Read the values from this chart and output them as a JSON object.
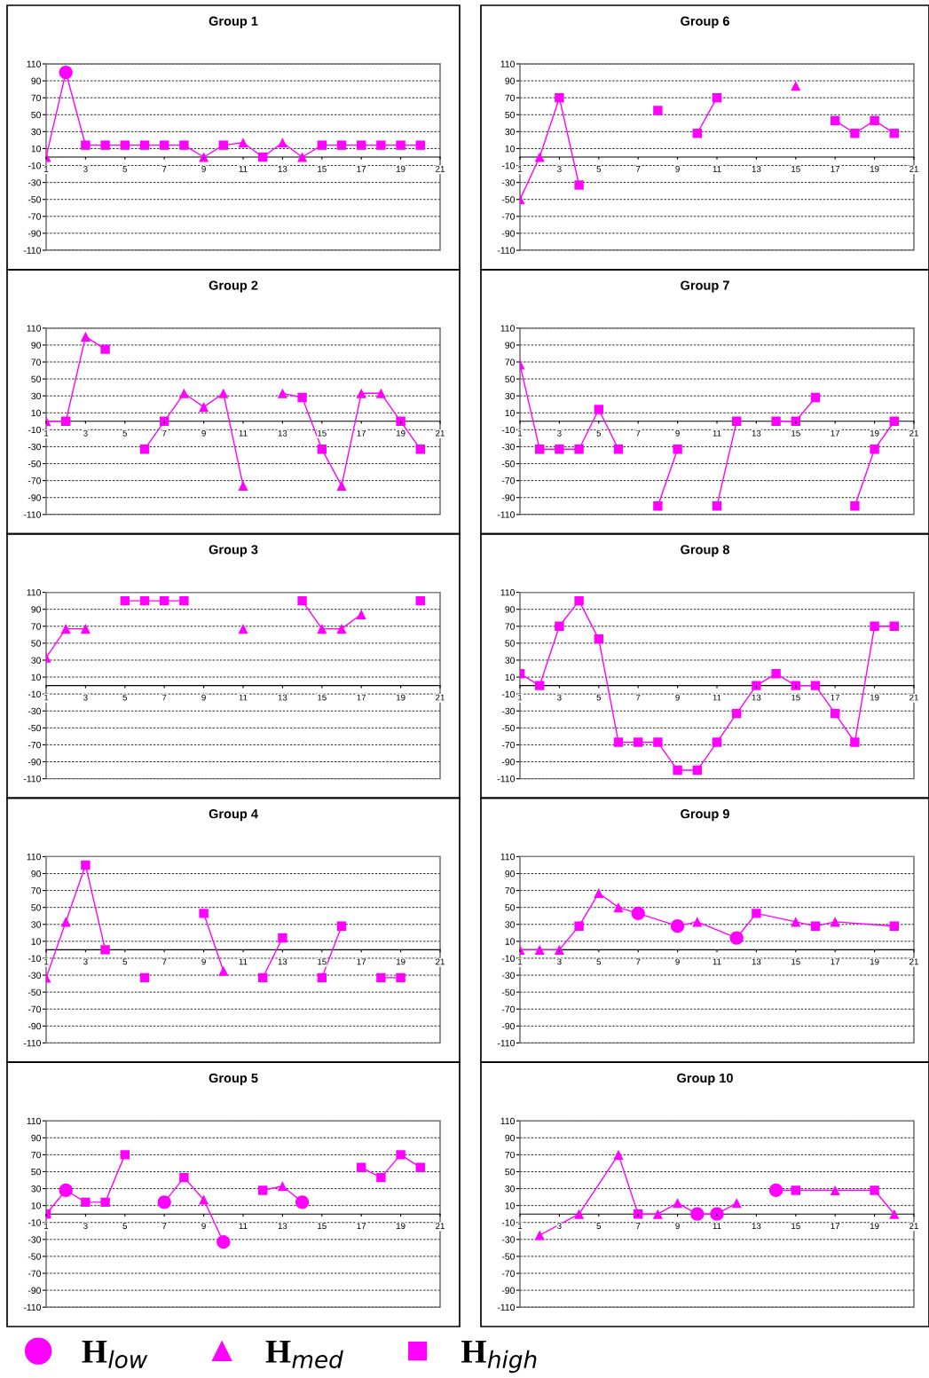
{
  "chart_data": [
    {
      "type": "line",
      "title": "Group 1",
      "x": [
        1,
        2,
        3,
        4,
        5,
        6,
        7,
        8,
        9,
        10,
        11,
        12,
        13,
        14,
        15,
        16,
        17,
        18,
        19,
        20
      ],
      "xlim": [
        1,
        21
      ],
      "xticks": [
        1,
        3,
        5,
        7,
        9,
        11,
        13,
        15,
        17,
        19,
        21
      ],
      "ylim": [
        -110,
        110
      ],
      "yticks": [
        -110,
        -90,
        -70,
        -50,
        -30,
        -10,
        10,
        30,
        50,
        70,
        90,
        110
      ],
      "grid": "y",
      "legend": "bottom",
      "series": [
        {
          "type": "line",
          "color": "#ff00ff",
          "marker": "none",
          "values": [
            0,
            100,
            14,
            14,
            14,
            14,
            14,
            14,
            0,
            14,
            17,
            0,
            17,
            0,
            14,
            14,
            14,
            14,
            14,
            14
          ]
        },
        {
          "type": "scatter",
          "name": "H$_{low}$",
          "marker": "circle",
          "color": "#ff00ff",
          "values": [
            null,
            100,
            null,
            null,
            null,
            null,
            null,
            null,
            null,
            null,
            null,
            null,
            null,
            null,
            null,
            null,
            null,
            null,
            null,
            null
          ]
        },
        {
          "type": "scatter",
          "name": "H$_{med}$",
          "marker": "triangle",
          "color": "#ff00ff",
          "values": [
            0,
            null,
            null,
            null,
            null,
            null,
            null,
            null,
            0,
            null,
            17,
            null,
            17,
            0,
            null,
            null,
            null,
            null,
            null,
            null
          ]
        },
        {
          "type": "scatter",
          "name": "H$_{high}$",
          "marker": "square",
          "color": "#ff00ff",
          "values": [
            null,
            null,
            14,
            14,
            14,
            14,
            14,
            14,
            null,
            14,
            null,
            0,
            null,
            null,
            14,
            14,
            14,
            14,
            14,
            14
          ]
        }
      ]
    },
    {
      "type": "line",
      "title": "Group 6",
      "x": [
        1,
        2,
        3,
        4,
        5,
        6,
        7,
        8,
        9,
        10,
        11,
        12,
        13,
        14,
        15,
        16,
        17,
        18,
        19,
        20
      ],
      "xlim": [
        1,
        21
      ],
      "xticks": [
        1,
        3,
        5,
        7,
        9,
        11,
        13,
        15,
        17,
        19,
        21
      ],
      "ylim": [
        -110,
        110
      ],
      "yticks": [
        -110,
        -90,
        -70,
        -50,
        -30,
        -10,
        10,
        30,
        50,
        70,
        90,
        110
      ],
      "grid": "y",
      "series": [
        {
          "type": "line",
          "color": "#ff00ff",
          "marker": "none",
          "values": [
            -50,
            0,
            70,
            -33,
            null,
            null,
            null,
            null,
            null,
            28,
            70,
            null,
            null,
            null,
            null,
            null,
            43,
            28,
            43,
            28
          ]
        },
        {
          "type": "scatter",
          "marker": "triangle",
          "color": "#ff00ff",
          "values": [
            -50,
            0,
            null,
            null,
            null,
            null,
            null,
            null,
            null,
            null,
            null,
            null,
            null,
            null,
            84,
            null,
            null,
            null,
            null,
            null
          ]
        },
        {
          "type": "scatter",
          "marker": "square",
          "color": "#ff00ff",
          "values": [
            null,
            null,
            70,
            -33,
            null,
            null,
            null,
            55,
            null,
            28,
            70,
            null,
            null,
            null,
            null,
            null,
            43,
            28,
            43,
            28
          ]
        }
      ]
    },
    {
      "type": "line",
      "title": "Group 2",
      "x": [
        1,
        2,
        3,
        4,
        5,
        6,
        7,
        8,
        9,
        10,
        11,
        12,
        13,
        14,
        15,
        16,
        17,
        18,
        19,
        20
      ],
      "xlim": [
        1,
        21
      ],
      "xticks": [
        1,
        3,
        5,
        7,
        9,
        11,
        13,
        15,
        17,
        19,
        21
      ],
      "ylim": [
        -110,
        110
      ],
      "yticks": [
        -110,
        -90,
        -70,
        -50,
        -30,
        -10,
        10,
        30,
        50,
        70,
        90,
        110
      ],
      "grid": "y",
      "series": [
        {
          "type": "line",
          "color": "#ff00ff",
          "marker": "none",
          "values": [
            0,
            0,
            100,
            85,
            null,
            -33,
            0,
            33,
            17,
            33,
            -76,
            null,
            33,
            28,
            -33,
            -76,
            33,
            33,
            0,
            -33
          ]
        },
        {
          "type": "scatter",
          "marker": "triangle",
          "color": "#ff00ff",
          "values": [
            0,
            null,
            100,
            null,
            null,
            null,
            null,
            33,
            17,
            33,
            -76,
            null,
            33,
            null,
            null,
            -76,
            33,
            33,
            null,
            null
          ]
        },
        {
          "type": "scatter",
          "marker": "square",
          "color": "#ff00ff",
          "values": [
            null,
            0,
            null,
            85,
            null,
            -33,
            0,
            null,
            null,
            null,
            null,
            null,
            null,
            28,
            -33,
            null,
            null,
            null,
            0,
            -33
          ]
        }
      ]
    },
    {
      "type": "line",
      "title": "Group 7",
      "x": [
        1,
        2,
        3,
        4,
        5,
        6,
        7,
        8,
        9,
        10,
        11,
        12,
        13,
        14,
        15,
        16,
        17,
        18,
        19,
        20
      ],
      "xlim": [
        1,
        21
      ],
      "xticks": [
        1,
        3,
        5,
        7,
        9,
        11,
        13,
        15,
        17,
        19,
        21
      ],
      "ylim": [
        -110,
        110
      ],
      "yticks": [
        -110,
        -90,
        -70,
        -50,
        -30,
        -10,
        10,
        30,
        50,
        70,
        90,
        110
      ],
      "grid": "y",
      "series": [
        {
          "type": "line",
          "color": "#ff00ff",
          "marker": "none",
          "values": [
            67,
            -33,
            -33,
            -33,
            14,
            -33,
            null,
            -100,
            -33,
            null,
            -100,
            0,
            null,
            0,
            0,
            28,
            null,
            -100,
            -33,
            0
          ]
        },
        {
          "type": "scatter",
          "marker": "triangle",
          "color": "#ff00ff",
          "values": [
            67,
            null,
            null,
            null,
            null,
            null,
            null,
            null,
            null,
            null,
            null,
            null,
            null,
            null,
            null,
            null,
            null,
            null,
            null,
            null
          ]
        },
        {
          "type": "scatter",
          "marker": "square",
          "color": "#ff00ff",
          "values": [
            null,
            -33,
            -33,
            -33,
            14,
            -33,
            null,
            -100,
            -33,
            null,
            -100,
            0,
            null,
            0,
            0,
            28,
            null,
            -100,
            -33,
            0
          ]
        }
      ]
    },
    {
      "type": "line",
      "title": "Group 3",
      "x": [
        1,
        2,
        3,
        4,
        5,
        6,
        7,
        8,
        9,
        10,
        11,
        12,
        13,
        14,
        15,
        16,
        17,
        18,
        19,
        20
      ],
      "xlim": [
        1,
        21
      ],
      "xticks": [
        1,
        3,
        5,
        7,
        9,
        11,
        13,
        15,
        17,
        19,
        21
      ],
      "ylim": [
        -110,
        110
      ],
      "yticks": [
        -110,
        -90,
        -70,
        -50,
        -30,
        -10,
        10,
        30,
        50,
        70,
        90,
        110
      ],
      "grid": "y",
      "series": [
        {
          "type": "line",
          "color": "#ff00ff",
          "marker": "none",
          "values": [
            33,
            67,
            67,
            null,
            100,
            100,
            100,
            100,
            null,
            null,
            null,
            null,
            null,
            100,
            67,
            67,
            84,
            null,
            null,
            null
          ]
        },
        {
          "type": "scatter",
          "marker": "triangle",
          "color": "#ff00ff",
          "values": [
            33,
            67,
            67,
            null,
            null,
            null,
            null,
            null,
            null,
            null,
            67,
            null,
            null,
            null,
            67,
            67,
            84,
            null,
            null,
            null
          ]
        },
        {
          "type": "scatter",
          "marker": "square",
          "color": "#ff00ff",
          "values": [
            null,
            null,
            null,
            null,
            100,
            100,
            100,
            100,
            null,
            null,
            null,
            null,
            null,
            100,
            null,
            null,
            null,
            null,
            null,
            100
          ]
        }
      ]
    },
    {
      "type": "line",
      "title": "Group 8",
      "x": [
        1,
        2,
        3,
        4,
        5,
        6,
        7,
        8,
        9,
        10,
        11,
        12,
        13,
        14,
        15,
        16,
        17,
        18,
        19,
        20
      ],
      "xlim": [
        1,
        21
      ],
      "xticks": [
        1,
        3,
        5,
        7,
        9,
        11,
        13,
        15,
        17,
        19,
        21
      ],
      "ylim": [
        -110,
        110
      ],
      "yticks": [
        -110,
        -90,
        -70,
        -50,
        -30,
        -10,
        10,
        30,
        50,
        70,
        90,
        110
      ],
      "grid": "y",
      "series": [
        {
          "type": "line",
          "color": "#ff00ff",
          "marker": "none",
          "values": [
            14,
            0,
            70,
            100,
            55,
            -67,
            -67,
            -67,
            -100,
            -100,
            -67,
            -33,
            0,
            14,
            0,
            0,
            -33,
            -67,
            70,
            70
          ]
        },
        {
          "type": "scatter",
          "marker": "square",
          "color": "#ff00ff",
          "values": [
            14,
            0,
            70,
            100,
            55,
            -67,
            -67,
            -67,
            -100,
            -100,
            -67,
            -33,
            0,
            14,
            0,
            0,
            -33,
            -67,
            70,
            70
          ]
        }
      ]
    },
    {
      "type": "line",
      "title": "Group 4",
      "x": [
        1,
        2,
        3,
        4,
        5,
        6,
        7,
        8,
        9,
        10,
        11,
        12,
        13,
        14,
        15,
        16,
        17,
        18,
        19
      ],
      "xlim": [
        1,
        21
      ],
      "xticks": [
        1,
        3,
        5,
        7,
        9,
        11,
        13,
        15,
        17,
        19,
        21
      ],
      "ylim": [
        -110,
        110
      ],
      "yticks": [
        -110,
        -90,
        -70,
        -50,
        -30,
        -10,
        10,
        30,
        50,
        70,
        90,
        110
      ],
      "grid": "y",
      "series": [
        {
          "type": "line",
          "color": "#ff00ff",
          "marker": "none",
          "values": [
            -33,
            33,
            100,
            0,
            null,
            null,
            null,
            null,
            43,
            -25,
            null,
            -33,
            14,
            null,
            -33,
            28,
            null,
            -33,
            -33
          ]
        },
        {
          "type": "scatter",
          "marker": "triangle",
          "color": "#ff00ff",
          "values": [
            -33,
            33,
            null,
            null,
            null,
            null,
            null,
            null,
            null,
            -25,
            null,
            null,
            null,
            null,
            null,
            null,
            null,
            null,
            null
          ]
        },
        {
          "type": "scatter",
          "marker": "square",
          "color": "#ff00ff",
          "values": [
            null,
            null,
            100,
            0,
            null,
            -33,
            null,
            null,
            43,
            null,
            null,
            -33,
            14,
            null,
            -33,
            28,
            null,
            -33,
            -33
          ]
        }
      ]
    },
    {
      "type": "line",
      "title": "Group 9",
      "x": [
        1,
        2,
        3,
        4,
        5,
        6,
        7,
        8,
        9,
        10,
        11,
        12,
        13,
        14,
        15,
        16,
        17,
        18,
        19,
        20
      ],
      "xlim": [
        1,
        21
      ],
      "xticks": [
        1,
        3,
        5,
        7,
        9,
        11,
        13,
        15,
        17,
        19,
        21
      ],
      "ylim": [
        -110,
        110
      ],
      "yticks": [
        -110,
        -90,
        -70,
        -50,
        -30,
        -10,
        10,
        30,
        50,
        70,
        90,
        110
      ],
      "grid": "y",
      "series": [
        {
          "type": "line",
          "color": "#ff00ff",
          "marker": "none",
          "x": [
            1,
            2,
            3,
            4,
            5,
            6,
            7,
            9,
            10,
            12,
            13,
            15,
            16,
            17,
            20
          ],
          "values": [
            0,
            0,
            0,
            28,
            67,
            50,
            43,
            28,
            33,
            14,
            43,
            33,
            28,
            33,
            28
          ]
        },
        {
          "type": "scatter",
          "marker": "circle",
          "color": "#ff00ff",
          "values": [
            null,
            null,
            null,
            null,
            null,
            null,
            43,
            null,
            28,
            null,
            null,
            14,
            null,
            null,
            null,
            null,
            null,
            null,
            null,
            null
          ]
        },
        {
          "type": "scatter",
          "marker": "triangle",
          "color": "#ff00ff",
          "values": [
            0,
            0,
            0,
            null,
            67,
            50,
            null,
            null,
            null,
            33,
            null,
            null,
            null,
            null,
            33,
            null,
            33,
            null,
            null,
            null
          ]
        },
        {
          "type": "scatter",
          "marker": "square",
          "color": "#ff00ff",
          "values": [
            null,
            null,
            null,
            28,
            null,
            null,
            null,
            null,
            null,
            null,
            null,
            null,
            43,
            null,
            null,
            28,
            null,
            null,
            null,
            28
          ]
        }
      ]
    },
    {
      "type": "line",
      "title": "Group 5",
      "x": [
        1,
        2,
        3,
        4,
        5,
        6,
        7,
        8,
        9,
        10,
        11,
        12,
        13,
        14,
        15,
        16,
        17,
        18,
        19,
        20
      ],
      "xlim": [
        1,
        21
      ],
      "xticks": [
        1,
        3,
        5,
        7,
        9,
        11,
        13,
        15,
        17,
        19,
        21
      ],
      "ylim": [
        -110,
        110
      ],
      "yticks": [
        -110,
        -90,
        -70,
        -50,
        -30,
        -10,
        10,
        30,
        50,
        70,
        90,
        110
      ],
      "grid": "y",
      "series": [
        {
          "type": "line",
          "color": "#ff00ff",
          "marker": "none",
          "values": [
            0,
            28,
            14,
            14,
            70,
            null,
            14,
            43,
            17,
            -33,
            null,
            28,
            33,
            14,
            null,
            null,
            55,
            43,
            70,
            55
          ]
        },
        {
          "type": "scatter",
          "marker": "circle",
          "color": "#ff00ff",
          "values": [
            null,
            28,
            null,
            null,
            null,
            null,
            14,
            null,
            null,
            -33,
            null,
            null,
            null,
            14,
            null,
            null,
            null,
            null,
            null,
            null
          ]
        },
        {
          "type": "scatter",
          "marker": "triangle",
          "color": "#ff00ff",
          "values": [
            null,
            null,
            null,
            null,
            null,
            null,
            null,
            null,
            17,
            null,
            null,
            null,
            33,
            null,
            null,
            null,
            null,
            null,
            null,
            null
          ]
        },
        {
          "type": "scatter",
          "marker": "square",
          "color": "#ff00ff",
          "values": [
            0,
            null,
            14,
            14,
            70,
            null,
            null,
            43,
            null,
            null,
            null,
            28,
            null,
            null,
            null,
            null,
            55,
            43,
            70,
            55
          ]
        }
      ]
    },
    {
      "type": "line",
      "title": "Group 10",
      "x": [
        2,
        3,
        4,
        5,
        6,
        7,
        8,
        9,
        10,
        11,
        12,
        13,
        14,
        15,
        16,
        17,
        18,
        19,
        20
      ],
      "xlim": [
        1,
        21
      ],
      "xticks": [
        1,
        3,
        5,
        7,
        9,
        11,
        13,
        15,
        17,
        19,
        21
      ],
      "ylim": [
        -110,
        110
      ],
      "yticks": [
        -110,
        -90,
        -70,
        -50,
        -30,
        -10,
        10,
        30,
        50,
        70,
        90,
        110
      ],
      "grid": "y",
      "series": [
        {
          "type": "line",
          "color": "#ff00ff",
          "marker": "none",
          "x": [
            2,
            4,
            6,
            7,
            8,
            9,
            10,
            11,
            12,
            13,
            14,
            15,
            17,
            19,
            20
          ],
          "values": [
            -25,
            0,
            70,
            0,
            0,
            13,
            0,
            0,
            13,
            null,
            28,
            28,
            28,
            28,
            0
          ]
        },
        {
          "type": "scatter",
          "marker": "circle",
          "color": "#ff00ff",
          "values": [
            null,
            null,
            null,
            null,
            null,
            null,
            null,
            null,
            0,
            0,
            null,
            null,
            28,
            null,
            null,
            null,
            null,
            null,
            null
          ]
        },
        {
          "type": "scatter",
          "marker": "triangle",
          "color": "#ff00ff",
          "values": [
            -25,
            null,
            0,
            null,
            70,
            null,
            0,
            13,
            null,
            null,
            13,
            null,
            null,
            null,
            null,
            28,
            null,
            null,
            0
          ]
        },
        {
          "type": "scatter",
          "marker": "square",
          "color": "#ff00ff",
          "values": [
            null,
            null,
            null,
            null,
            null,
            0,
            null,
            null,
            null,
            null,
            null,
            null,
            null,
            28,
            null,
            null,
            null,
            28,
            null
          ]
        }
      ]
    }
  ]
}
